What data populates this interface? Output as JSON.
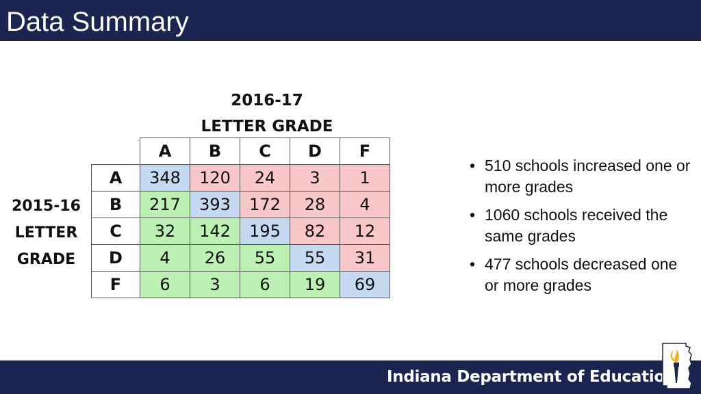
{
  "slide": {
    "title": "Data Summary",
    "footer_org": "Indiana Department of Education"
  },
  "table": {
    "col_title": "2016-17\nLETTER GRADE",
    "row_title": "2015-16\nLETTER\nGRADE",
    "col_headers": [
      "A",
      "B",
      "C",
      "D",
      "F"
    ],
    "row_headers": [
      "A",
      "B",
      "C",
      "D",
      "F"
    ],
    "rows": [
      [
        348,
        120,
        24,
        3,
        1
      ],
      [
        217,
        393,
        172,
        28,
        4
      ],
      [
        32,
        142,
        195,
        82,
        12
      ],
      [
        4,
        26,
        55,
        55,
        31
      ],
      [
        6,
        3,
        6,
        19,
        69
      ]
    ],
    "colors": {
      "same": "#c5d9f1",
      "decreased": "#f7c7c9",
      "increased": "#bdf0b3"
    }
  },
  "bullets": [
    "510 schools increased one or more grades",
    "1060 schools received the same grades",
    "477 schools decreased one or more grades"
  ],
  "theme": {
    "header_bg": "#1b2550",
    "footer_bg": "#1b2550"
  },
  "logo": {
    "icon": "indiana-torch-logo-icon"
  }
}
